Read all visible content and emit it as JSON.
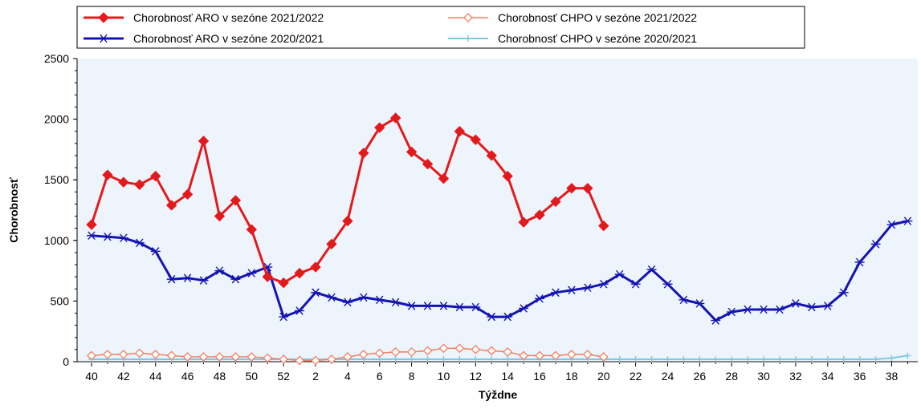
{
  "chart_data": {
    "type": "line",
    "xlabel": "Týždne",
    "ylabel": "Chorobnosť",
    "ylim": [
      0,
      2500
    ],
    "yticks": [
      0,
      500,
      1000,
      1500,
      2000,
      2500
    ],
    "grid": false,
    "legend_position": "top",
    "weeks": [
      40,
      41,
      42,
      43,
      44,
      45,
      46,
      47,
      48,
      49,
      50,
      51,
      52,
      1,
      2,
      3,
      4,
      5,
      6,
      7,
      8,
      9,
      10,
      11,
      12,
      13,
      14,
      15,
      16,
      17,
      18,
      19,
      20,
      21,
      22,
      23,
      24,
      25,
      26,
      27,
      28,
      29,
      30,
      31,
      32,
      33,
      34,
      35,
      36,
      37,
      38,
      39
    ],
    "x_tick_labels": [
      "40",
      "42",
      "44",
      "46",
      "48",
      "50",
      "52",
      "2",
      "4",
      "6",
      "8",
      "10",
      "12",
      "14",
      "16",
      "18",
      "20",
      "22",
      "24",
      "26",
      "28",
      "30",
      "32",
      "34",
      "36",
      "38"
    ],
    "series": [
      {
        "name": "Chorobnosť ARO v sezóne 2021/2022",
        "color": "#e31a1c",
        "marker": "diamond-filled",
        "values": [
          1130,
          1540,
          1480,
          1460,
          1530,
          1290,
          1380,
          1820,
          1200,
          1330,
          1090,
          700,
          650,
          730,
          780,
          970,
          1160,
          1720,
          1930,
          2010,
          1730,
          1630,
          1510,
          1900,
          1830,
          1700,
          1530,
          1150,
          1210,
          1320,
          1430,
          1430,
          1120
        ]
      },
      {
        "name": "Chorobnosť CHPO v sezóne 2021/2022",
        "color": "#f08060",
        "marker": "diamond-open",
        "values": [
          50,
          60,
          60,
          70,
          60,
          50,
          40,
          40,
          40,
          40,
          40,
          30,
          20,
          10,
          10,
          20,
          40,
          60,
          70,
          80,
          80,
          90,
          110,
          110,
          100,
          90,
          80,
          50,
          50,
          50,
          60,
          60,
          40
        ]
      },
      {
        "name": "Chorobnosť ARO v sezóne 2020/2021",
        "color": "#1414b4",
        "marker": "asterisk",
        "values": [
          1040,
          1030,
          1020,
          980,
          910,
          680,
          690,
          670,
          750,
          680,
          730,
          780,
          370,
          420,
          570,
          530,
          490,
          530,
          510,
          490,
          460,
          460,
          460,
          450,
          450,
          370,
          370,
          440,
          520,
          570,
          590,
          610,
          640,
          720,
          640,
          760,
          640,
          510,
          480,
          340,
          410,
          430,
          430,
          430,
          480,
          450,
          460,
          570,
          820,
          970,
          1130,
          1160
        ]
      },
      {
        "name": "Chorobnosť CHPO v sezóne 2020/2021",
        "color": "#7ec8e3",
        "marker": "plus",
        "values": [
          20,
          20,
          20,
          20,
          20,
          20,
          20,
          20,
          20,
          20,
          20,
          20,
          20,
          20,
          20,
          20,
          20,
          20,
          20,
          20,
          20,
          20,
          20,
          20,
          20,
          20,
          20,
          20,
          20,
          20,
          20,
          20,
          20,
          20,
          20,
          20,
          20,
          20,
          20,
          20,
          20,
          20,
          20,
          20,
          20,
          20,
          20,
          20,
          20,
          20,
          30,
          50
        ]
      }
    ]
  }
}
